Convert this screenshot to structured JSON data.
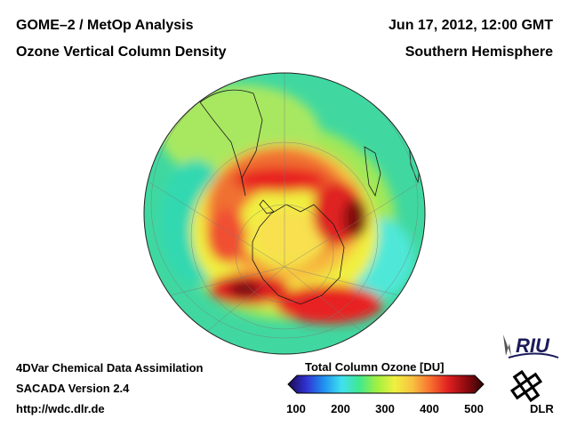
{
  "header": {
    "title_left_1": "GOME–2 / MetOp Analysis",
    "title_left_2": "Ozone Vertical Column Density",
    "title_right_1": "Jun 17, 2012, 12:00 GMT",
    "title_right_2": "Southern Hemisphere"
  },
  "footer": {
    "line1": "4DVar Chemical Data Assimilation",
    "line2": "SACADA Version 2.4",
    "line3": "http://wdc.dlr.de"
  },
  "colorbar": {
    "title": "Total Column Ozone [DU]",
    "min": 100,
    "max": 500,
    "ticks": [
      "100",
      "200",
      "300",
      "400",
      "500"
    ],
    "colors": [
      "#1a0a4a",
      "#3030d0",
      "#2090f0",
      "#40e0f0",
      "#40e890",
      "#a0f040",
      "#f0f040",
      "#f8c040",
      "#f87030",
      "#e02020",
      "#900a10",
      "#2a0505"
    ]
  },
  "logos": {
    "riu": "RIU",
    "dlr": "DLR"
  },
  "map": {
    "projection": "orthographic",
    "hemisphere": "south",
    "ocean_fill": "#40d8a0"
  }
}
